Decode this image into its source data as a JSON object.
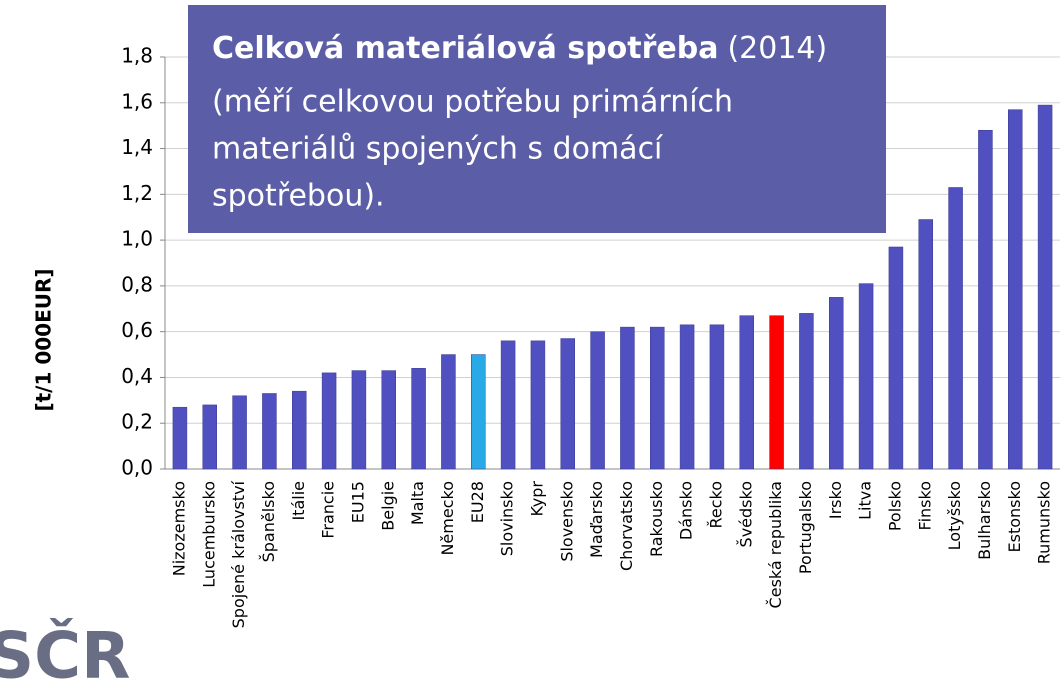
{
  "chart_data": {
    "type": "bar",
    "title": "Celková materiálová spotřeba",
    "subtitle": "(2014)",
    "annotation": [
      "(měří celkovou potřebu primárních",
      "materiálů spojených s domácí",
      "spotřebou)."
    ],
    "y_label": "[t/1 000EUR]",
    "logo": "SČR",
    "categories": [
      "Nizozemsko",
      "Lucembursko",
      "Spojené království",
      "Španělsko",
      "Itálie",
      "Francie",
      "EU15",
      "Belgie",
      "Malta",
      "Německo",
      "EU28",
      "Slovinsko",
      "Kypr",
      "Slovensko",
      "Maďarsko",
      "Chorvatsko",
      "Rakousko",
      "Dánsko",
      "Řecko",
      "Švédsko",
      "Česká republika",
      "Portugalsko",
      "Irsko",
      "Litva",
      "Polsko",
      "Finsko",
      "Lotyšsko",
      "Bulharsko",
      "Estonsko",
      "Rumunsko"
    ],
    "values": [
      0.27,
      0.28,
      0.32,
      0.33,
      0.34,
      0.42,
      0.43,
      0.43,
      0.44,
      0.5,
      0.5,
      0.56,
      0.56,
      0.57,
      0.6,
      0.62,
      0.62,
      0.63,
      0.63,
      0.67,
      0.67,
      0.68,
      0.75,
      0.81,
      0.97,
      1.09,
      1.23,
      1.48,
      1.57,
      1.59
    ],
    "colors": [
      "#5050c0",
      "#5050c0",
      "#5050c0",
      "#5050c0",
      "#5050c0",
      "#5050c0",
      "#5050c0",
      "#5050c0",
      "#5050c0",
      "#5050c0",
      "#29a9e6",
      "#5050c0",
      "#5050c0",
      "#5050c0",
      "#5050c0",
      "#5050c0",
      "#5050c0",
      "#5050c0",
      "#5050c0",
      "#5050c0",
      "#ff0000",
      "#5050c0",
      "#5050c0",
      "#5050c0",
      "#5050c0",
      "#5050c0",
      "#5050c0",
      "#5050c0",
      "#5050c0",
      "#5050c0"
    ],
    "ylim": [
      0,
      1.8
    ],
    "yticks": [
      {
        "value": 0,
        "label": "0,0"
      },
      {
        "value": 0.2,
        "label": "0,2"
      },
      {
        "value": 0.4,
        "label": "0,4"
      },
      {
        "value": 0.6,
        "label": "0,6"
      },
      {
        "value": 0.8,
        "label": "0,8"
      },
      {
        "value": 1.0,
        "label": "1,0"
      },
      {
        "value": 1.2,
        "label": "1,2"
      },
      {
        "value": 1.4,
        "label": "1,4"
      },
      {
        "value": 1.6,
        "label": "1,6"
      },
      {
        "value": 1.8,
        "label": "1,8"
      }
    ],
    "grid": true
  }
}
